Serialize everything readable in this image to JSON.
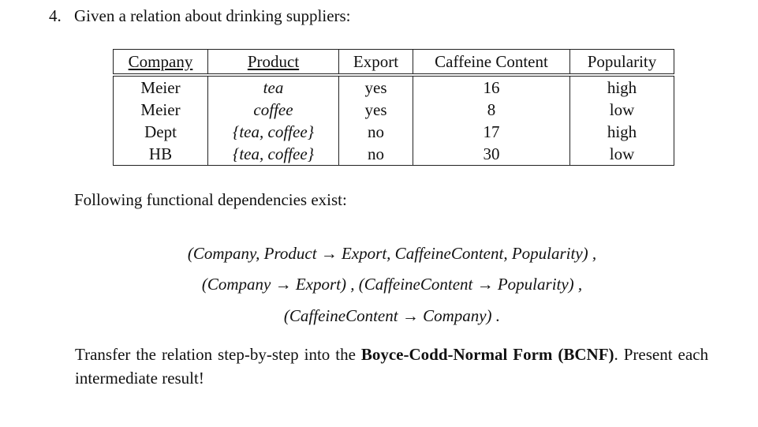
{
  "question": {
    "number": "4.",
    "text": "Given a relation about drinking suppliers:"
  },
  "table": {
    "headers": [
      "Company",
      "Product",
      "Export",
      "Caffeine Content",
      "Popularity"
    ],
    "rows": [
      [
        "Meier",
        "tea",
        "yes",
        16,
        "high"
      ],
      [
        "Meier",
        "coffee",
        "yes",
        8,
        "low"
      ],
      [
        "Dept",
        "{tea, coffee}",
        "no",
        17,
        "high"
      ],
      [
        "HB",
        "{tea, coffee}",
        "no",
        30,
        "low"
      ]
    ]
  },
  "dependencies_intro": "Following functional dependencies exist:",
  "dependencies": [
    "(Company, Product → Export, CaffeineContent, Popularity) ,",
    "(Company → Export) , (CaffeineContent → Popularity) ,",
    "(CaffeineContent → Company) ."
  ],
  "task": {
    "text_before": "Transfer the relation step-by-step into the",
    "bold": "Boyce-Codd-Normal Form (BCNF)",
    "text_after": ". Present each intermediate result!"
  }
}
